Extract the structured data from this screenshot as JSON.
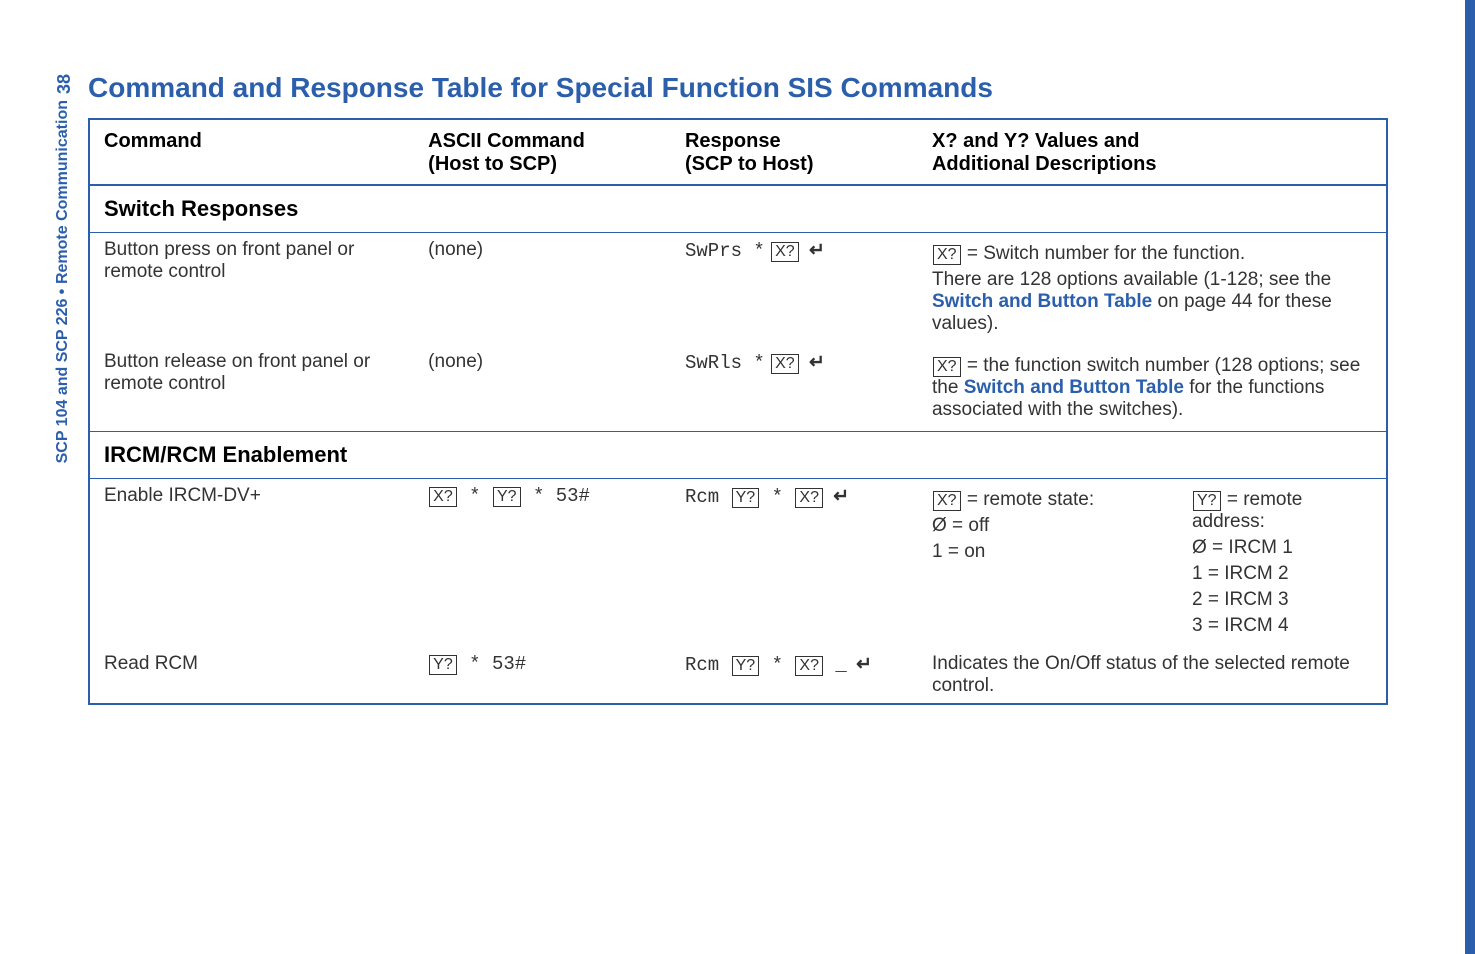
{
  "page_number": "38",
  "side_label": {
    "doc": "SCP 104 and SCP 226",
    "separator": "•",
    "section": "Remote Communication"
  },
  "title": "Command and Response Table for Special Function SIS Commands",
  "columns": {
    "command": "Command",
    "ascii_line1": "ASCII Command",
    "ascii_line2": "(Host to SCP)",
    "response_line1": "Response",
    "response_line2": "(SCP to Host)",
    "desc_line1": "X? and Y? Values and",
    "desc_line2": "Additional Descriptions"
  },
  "sections": {
    "switch": "Switch Responses",
    "ircm": "IRCM/RCM Enablement"
  },
  "rows": {
    "btn_press": {
      "command": "Button press on front panel or remote control",
      "ascii": "(none)",
      "resp_prefix": "SwPrs *",
      "resp_var": "X?",
      "desc1_var": "X?",
      "desc1_text": " = Switch number for the function.",
      "desc2_a": "There are 128 options available (1-128; see the ",
      "desc2_link": "Switch and Button Table",
      "desc2_b": " on page 44 for these values)."
    },
    "btn_release": {
      "command": "Button release on front panel or remote control",
      "ascii": "(none)",
      "resp_prefix": "SwRls *",
      "resp_var": "X?",
      "desc_var": "X?",
      "desc_a": " = the function switch number (128 options; see the ",
      "desc_link": "Switch and Button Table",
      "desc_b": " for the functions associated with the switches)."
    },
    "enable_ircm": {
      "command": "Enable IRCM-DV+",
      "ascii_var1": "X?",
      "ascii_sep1": " * ",
      "ascii_var2": "Y?",
      "ascii_suffix": " * 53#",
      "resp_prefix": "Rcm ",
      "resp_var1": "Y?",
      "resp_sep": " * ",
      "resp_var2": "X?",
      "left_var": "X?",
      "left_label": " = remote state:",
      "left_opt0": "Ø = off",
      "left_opt1": "1 = on",
      "right_var": "Y?",
      "right_label": " = remote address:",
      "right_opt0": "Ø = IRCM 1",
      "right_opt1": "1 = IRCM 2",
      "right_opt2": "2 = IRCM 3",
      "right_opt3": "3 = IRCM 4"
    },
    "read_rcm": {
      "command": "Read RCM",
      "ascii_var": "Y?",
      "ascii_suffix": " * 53#",
      "resp_prefix": "Rcm ",
      "resp_var1": "Y?",
      "resp_sep": " * ",
      "resp_var2": "X?",
      "resp_suffix": " _",
      "desc": "Indicates the On/Off status of the selected remote control."
    }
  },
  "enter_glyph": "↵"
}
